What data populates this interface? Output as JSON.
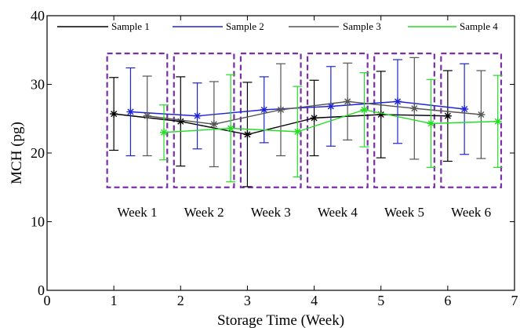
{
  "chart_data": {
    "type": "line",
    "title": "",
    "xlabel": "Storage Time (Week)",
    "ylabel": "MCH (pg)",
    "xlim": [
      0,
      7
    ],
    "ylim": [
      0,
      40
    ],
    "xticks": [
      "0",
      "1",
      "2",
      "3",
      "4",
      "5",
      "6",
      "7"
    ],
    "yticks": [
      "0",
      "10",
      "20",
      "30",
      "40"
    ],
    "grid": false,
    "legend_position": "top",
    "series": [
      {
        "name": "Sample 1",
        "color": "#000000",
        "x": [
          1.0,
          2.0,
          3.0,
          4.0,
          5.0,
          6.0
        ],
        "y": [
          25.7,
          24.6,
          22.7,
          25.1,
          25.6,
          25.4
        ],
        "err": [
          5.3,
          6.5,
          7.6,
          5.5,
          6.3,
          6.6
        ]
      },
      {
        "name": "Sample 2",
        "color": "#1f24d6",
        "x": [
          1.25,
          2.25,
          3.25,
          4.25,
          5.25,
          6.25
        ],
        "y": [
          26.0,
          25.4,
          26.3,
          26.8,
          27.5,
          26.4
        ],
        "err": [
          6.4,
          4.8,
          4.8,
          5.8,
          6.1,
          6.6
        ]
      },
      {
        "name": "Sample 3",
        "color": "#555555",
        "x": [
          1.5,
          2.5,
          3.5,
          4.5,
          5.5,
          6.5
        ],
        "y": [
          25.4,
          24.2,
          26.3,
          27.5,
          26.5,
          25.6
        ],
        "err": [
          5.8,
          6.2,
          6.7,
          5.6,
          7.4,
          6.4
        ]
      },
      {
        "name": "Sample 4",
        "color": "#22dd22",
        "x": [
          1.75,
          2.75,
          3.75,
          4.75,
          5.75,
          6.75
        ],
        "y": [
          23.0,
          23.6,
          23.1,
          26.3,
          24.3,
          24.6
        ],
        "err": [
          4.0,
          7.8,
          6.6,
          5.4,
          6.4,
          6.7
        ]
      }
    ],
    "annotations": [
      {
        "label": "Week 1",
        "x_range": [
          0.9,
          1.8
        ],
        "y_range": [
          15,
          34.5
        ]
      },
      {
        "label": "Week 2",
        "x_range": [
          1.9,
          2.8
        ],
        "y_range": [
          15,
          34.5
        ]
      },
      {
        "label": "Week 3",
        "x_range": [
          2.9,
          3.8
        ],
        "y_range": [
          15,
          34.5
        ]
      },
      {
        "label": "Week 4",
        "x_range": [
          3.9,
          4.8
        ],
        "y_range": [
          15,
          34.5
        ]
      },
      {
        "label": "Week 5",
        "x_range": [
          4.9,
          5.8
        ],
        "y_range": [
          15,
          34.5
        ]
      },
      {
        "label": "Week 6",
        "x_range": [
          5.9,
          6.8
        ],
        "y_range": [
          15,
          34.5
        ]
      }
    ],
    "box_color": "#7b2fa6"
  }
}
